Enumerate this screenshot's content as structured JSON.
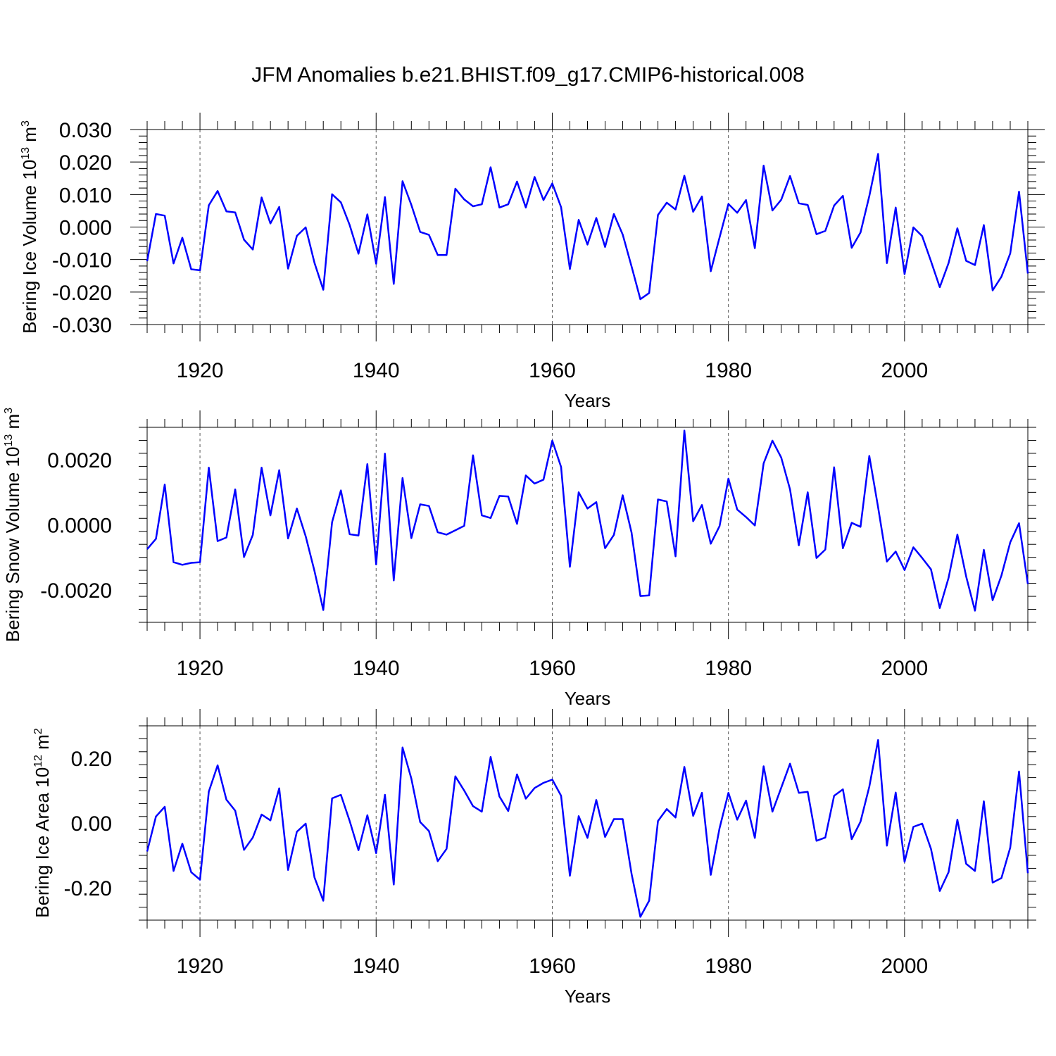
{
  "figure_title": "JFM Anomalies b.e21.BHIST.f09_g17.CMIP6-historical.008",
  "colors": {
    "line": "#0000ff",
    "axis": "#000000",
    "grid": "#555555"
  },
  "chart_data": [
    {
      "id": "ice-volume",
      "type": "line",
      "title": "",
      "xlabel": "Years",
      "ylabel": {
        "prefix": "Bering Ice Volume 10",
        "exp": "13",
        "unit": " m",
        "unit_exp": "3"
      },
      "xlim": [
        1914,
        2014
      ],
      "ylim": [
        -0.03,
        0.03
      ],
      "y_ticks": [
        -0.03,
        -0.02,
        -0.01,
        0.0,
        0.01,
        0.02,
        0.03
      ],
      "y_tick_labels": [
        "-0.030",
        "-0.020",
        "-0.010",
        "0.000",
        "0.010",
        "0.020",
        "0.030"
      ],
      "x_ticks": [
        1920,
        1940,
        1960,
        1980,
        2000
      ],
      "x_tick_labels": [
        "1920",
        "1940",
        "1960",
        "1980",
        "2000"
      ],
      "grid_x": [
        1920,
        1940,
        1960,
        1980,
        2000
      ],
      "x": [
        1914,
        1915,
        1916,
        1917,
        1918,
        1919,
        1920,
        1921,
        1922,
        1923,
        1924,
        1925,
        1926,
        1927,
        1928,
        1929,
        1930,
        1931,
        1932,
        1933,
        1934,
        1935,
        1936,
        1937,
        1938,
        1939,
        1940,
        1941,
        1942,
        1943,
        1944,
        1945,
        1946,
        1947,
        1948,
        1949,
        1950,
        1951,
        1952,
        1953,
        1954,
        1955,
        1956,
        1957,
        1958,
        1959,
        1960,
        1961,
        1962,
        1963,
        1964,
        1965,
        1966,
        1967,
        1968,
        1969,
        1970,
        1971,
        1972,
        1973,
        1974,
        1975,
        1976,
        1977,
        1978,
        1979,
        1980,
        1981,
        1982,
        1983,
        1984,
        1985,
        1986,
        1987,
        1988,
        1989,
        1990,
        1991,
        1992,
        1993,
        1994,
        1995,
        1996,
        1997,
        1998,
        1999,
        2000,
        2001,
        2002,
        2003,
        2004,
        2005,
        2006,
        2007,
        2008,
        2009,
        2010,
        2011,
        2012,
        2013,
        2014
      ],
      "values": [
        -0.0105,
        0.004,
        0.0035,
        -0.0112,
        -0.0033,
        -0.013,
        -0.0133,
        0.0067,
        0.0111,
        0.0048,
        0.0045,
        -0.0039,
        -0.0069,
        0.0091,
        0.0011,
        0.0062,
        -0.0128,
        -0.0027,
        -0.0001,
        -0.011,
        -0.0193,
        0.0101,
        0.0076,
        0.0006,
        -0.0082,
        0.0039,
        -0.0113,
        0.0092,
        -0.0175,
        0.0141,
        0.0068,
        -0.0015,
        -0.0024,
        -0.0086,
        -0.0086,
        0.0118,
        0.0085,
        0.0064,
        0.007,
        0.0184,
        0.006,
        0.007,
        0.014,
        0.006,
        0.0154,
        0.0083,
        0.0134,
        0.0061,
        -0.0129,
        0.0022,
        -0.0054,
        0.0028,
        -0.0061,
        0.004,
        -0.0023,
        -0.0121,
        -0.0222,
        -0.0203,
        0.0037,
        0.0075,
        0.0054,
        0.0158,
        0.0047,
        0.0094,
        -0.0136,
        -0.0032,
        0.0071,
        0.0044,
        0.0083,
        -0.0065,
        0.0189,
        0.0051,
        0.0084,
        0.0157,
        0.0073,
        0.0068,
        -0.0022,
        -0.0012,
        0.0066,
        0.0096,
        -0.0064,
        -0.0017,
        0.0095,
        0.0225,
        -0.0111,
        0.006,
        -0.0145,
        -0.0001,
        -0.0028,
        -0.0105,
        -0.0185,
        -0.0111,
        -0.0004,
        -0.0104,
        -0.0117,
        0.0006,
        -0.0195,
        -0.0153,
        -0.0081,
        0.0109,
        -0.0143
      ]
    },
    {
      "id": "snow-volume",
      "type": "line",
      "title": "",
      "xlabel": "Years",
      "ylabel": {
        "prefix": "Bering Snow Volume 10",
        "exp": "13",
        "unit": " m",
        "unit_exp": "3"
      },
      "xlim": [
        1914,
        2014
      ],
      "ylim": [
        -0.003,
        0.003
      ],
      "y_ticks": [
        -0.002,
        0.0,
        0.002
      ],
      "y_tick_labels": [
        "-0.0020",
        "0.0000",
        "0.0020"
      ],
      "x_ticks": [
        1920,
        1940,
        1960,
        1980,
        2000
      ],
      "x_tick_labels": [
        "1920",
        "1940",
        "1960",
        "1980",
        "2000"
      ],
      "grid_x": [
        1920,
        1940,
        1960,
        1980,
        2000
      ],
      "x": [
        1914,
        1915,
        1916,
        1917,
        1918,
        1919,
        1920,
        1921,
        1922,
        1923,
        1924,
        1925,
        1926,
        1927,
        1928,
        1929,
        1930,
        1931,
        1932,
        1933,
        1934,
        1935,
        1936,
        1937,
        1938,
        1939,
        1940,
        1941,
        1942,
        1943,
        1944,
        1945,
        1946,
        1947,
        1948,
        1949,
        1950,
        1951,
        1952,
        1953,
        1954,
        1955,
        1956,
        1957,
        1958,
        1959,
        1960,
        1961,
        1962,
        1963,
        1964,
        1965,
        1966,
        1967,
        1968,
        1969,
        1970,
        1971,
        1972,
        1973,
        1974,
        1975,
        1976,
        1977,
        1978,
        1979,
        1980,
        1981,
        1982,
        1983,
        1984,
        1985,
        1986,
        1987,
        1988,
        1989,
        1990,
        1991,
        1992,
        1993,
        1994,
        1995,
        1996,
        1997,
        1998,
        1999,
        2000,
        2001,
        2002,
        2003,
        2004,
        2005,
        2006,
        2007,
        2008,
        2009,
        2010,
        2011,
        2012,
        2013,
        2014
      ],
      "values": [
        -0.00075,
        -0.00043,
        0.00124,
        -0.00115,
        -0.00123,
        -0.00117,
        -0.00115,
        0.00176,
        -0.0005,
        -0.00039,
        0.00109,
        -0.00099,
        -0.00031,
        0.00176,
        0.00029,
        0.00168,
        -0.00042,
        0.0005,
        -0.00035,
        -0.00142,
        -0.00262,
        8e-05,
        0.00106,
        -0.00029,
        -0.00033,
        0.00187,
        -0.00122,
        0.00219,
        -0.00171,
        0.00144,
        -0.00041,
        0.00063,
        0.00058,
        -0.00023,
        -0.0003,
        -0.00017,
        -3e-05,
        0.00214,
        0.00029,
        0.00021,
        0.00089,
        0.00087,
        3e-05,
        0.00152,
        0.00127,
        0.00139,
        0.00259,
        0.00178,
        -0.00129,
        0.001,
        0.0005,
        0.0007,
        -0.00072,
        -0.00031,
        0.00091,
        -0.00024,
        -0.00219,
        -0.00217,
        0.00078,
        0.00072,
        -0.00097,
        0.0029,
        0.00011,
        0.00061,
        -0.00058,
        -4e-05,
        0.00142,
        0.00047,
        0.00024,
        -2e-05,
        0.00189,
        0.00259,
        0.00207,
        0.00109,
        -0.00063,
        0.001,
        -0.00102,
        -0.00076,
        0.00177,
        -0.00072,
        6e-05,
        -6e-05,
        0.00212,
        0.00054,
        -0.00113,
        -0.00082,
        -0.00139,
        -0.00069,
        -0.00102,
        -0.00137,
        -0.00256,
        -0.00163,
        -0.0003,
        -0.00159,
        -0.00264,
        -0.00077,
        -0.00232,
        -0.00156,
        -0.00054,
        5e-05,
        -0.00182
      ]
    },
    {
      "id": "ice-area",
      "type": "line",
      "title": "",
      "xlabel": "Years",
      "ylabel": {
        "prefix": "Bering Ice Area 10",
        "exp": "12",
        "unit": " m",
        "unit_exp": "2"
      },
      "xlim": [
        1914,
        2014
      ],
      "ylim": [
        -0.3,
        0.3
      ],
      "y_ticks": [
        -0.2,
        0.0,
        0.2
      ],
      "y_tick_labels": [
        "-0.20",
        "0.00",
        "0.20"
      ],
      "x_ticks": [
        1920,
        1940,
        1960,
        1980,
        2000
      ],
      "x_tick_labels": [
        "1920",
        "1940",
        "1960",
        "1980",
        "2000"
      ],
      "grid_x": [
        1920,
        1940,
        1960,
        1980,
        2000
      ],
      "x": [
        1914,
        1915,
        1916,
        1917,
        1918,
        1919,
        1920,
        1921,
        1922,
        1923,
        1924,
        1925,
        1926,
        1927,
        1928,
        1929,
        1930,
        1931,
        1932,
        1933,
        1934,
        1935,
        1936,
        1937,
        1938,
        1939,
        1940,
        1941,
        1942,
        1943,
        1944,
        1945,
        1946,
        1947,
        1948,
        1949,
        1950,
        1951,
        1952,
        1953,
        1954,
        1955,
        1956,
        1957,
        1958,
        1959,
        1960,
        1961,
        1962,
        1963,
        1964,
        1965,
        1966,
        1967,
        1968,
        1969,
        1970,
        1971,
        1972,
        1973,
        1974,
        1975,
        1976,
        1977,
        1978,
        1979,
        1980,
        1981,
        1982,
        1983,
        1984,
        1985,
        1986,
        1987,
        1988,
        1989,
        1990,
        1991,
        1992,
        1993,
        1994,
        1995,
        1996,
        1997,
        1998,
        1999,
        2000,
        2001,
        2002,
        2003,
        2004,
        2005,
        2006,
        2007,
        2008,
        2009,
        2010,
        2011,
        2012,
        2013,
        2014
      ],
      "values": [
        -0.088,
        0.02,
        0.05,
        -0.148,
        -0.064,
        -0.152,
        -0.175,
        0.097,
        0.178,
        0.072,
        0.038,
        -0.083,
        -0.045,
        0.026,
        0.008,
        0.107,
        -0.145,
        -0.027,
        -0.002,
        -0.168,
        -0.24,
        0.076,
        0.087,
        0.006,
        -0.084,
        0.024,
        -0.093,
        0.087,
        -0.19,
        0.233,
        0.137,
        0.003,
        -0.025,
        -0.118,
        -0.08,
        0.144,
        0.1,
        0.052,
        0.035,
        0.204,
        0.082,
        0.037,
        0.15,
        0.075,
        0.108,
        0.124,
        0.134,
        0.084,
        -0.163,
        0.021,
        -0.046,
        0.071,
        -0.043,
        0.012,
        0.012,
        -0.157,
        -0.29,
        -0.24,
        0.006,
        0.043,
        0.017,
        0.173,
        0.022,
        0.093,
        -0.16,
        -0.016,
        0.093,
        0.01,
        0.069,
        -0.046,
        0.175,
        0.035,
        0.109,
        0.183,
        0.093,
        0.096,
        -0.055,
        -0.045,
        0.084,
        0.104,
        -0.05,
        0.004,
        0.112,
        0.256,
        -0.07,
        0.094,
        -0.12,
        -0.012,
        -0.002,
        -0.08,
        -0.21,
        -0.152,
        0.01,
        -0.126,
        -0.148,
        0.067,
        -0.184,
        -0.17,
        -0.076,
        0.159,
        -0.155
      ]
    }
  ]
}
